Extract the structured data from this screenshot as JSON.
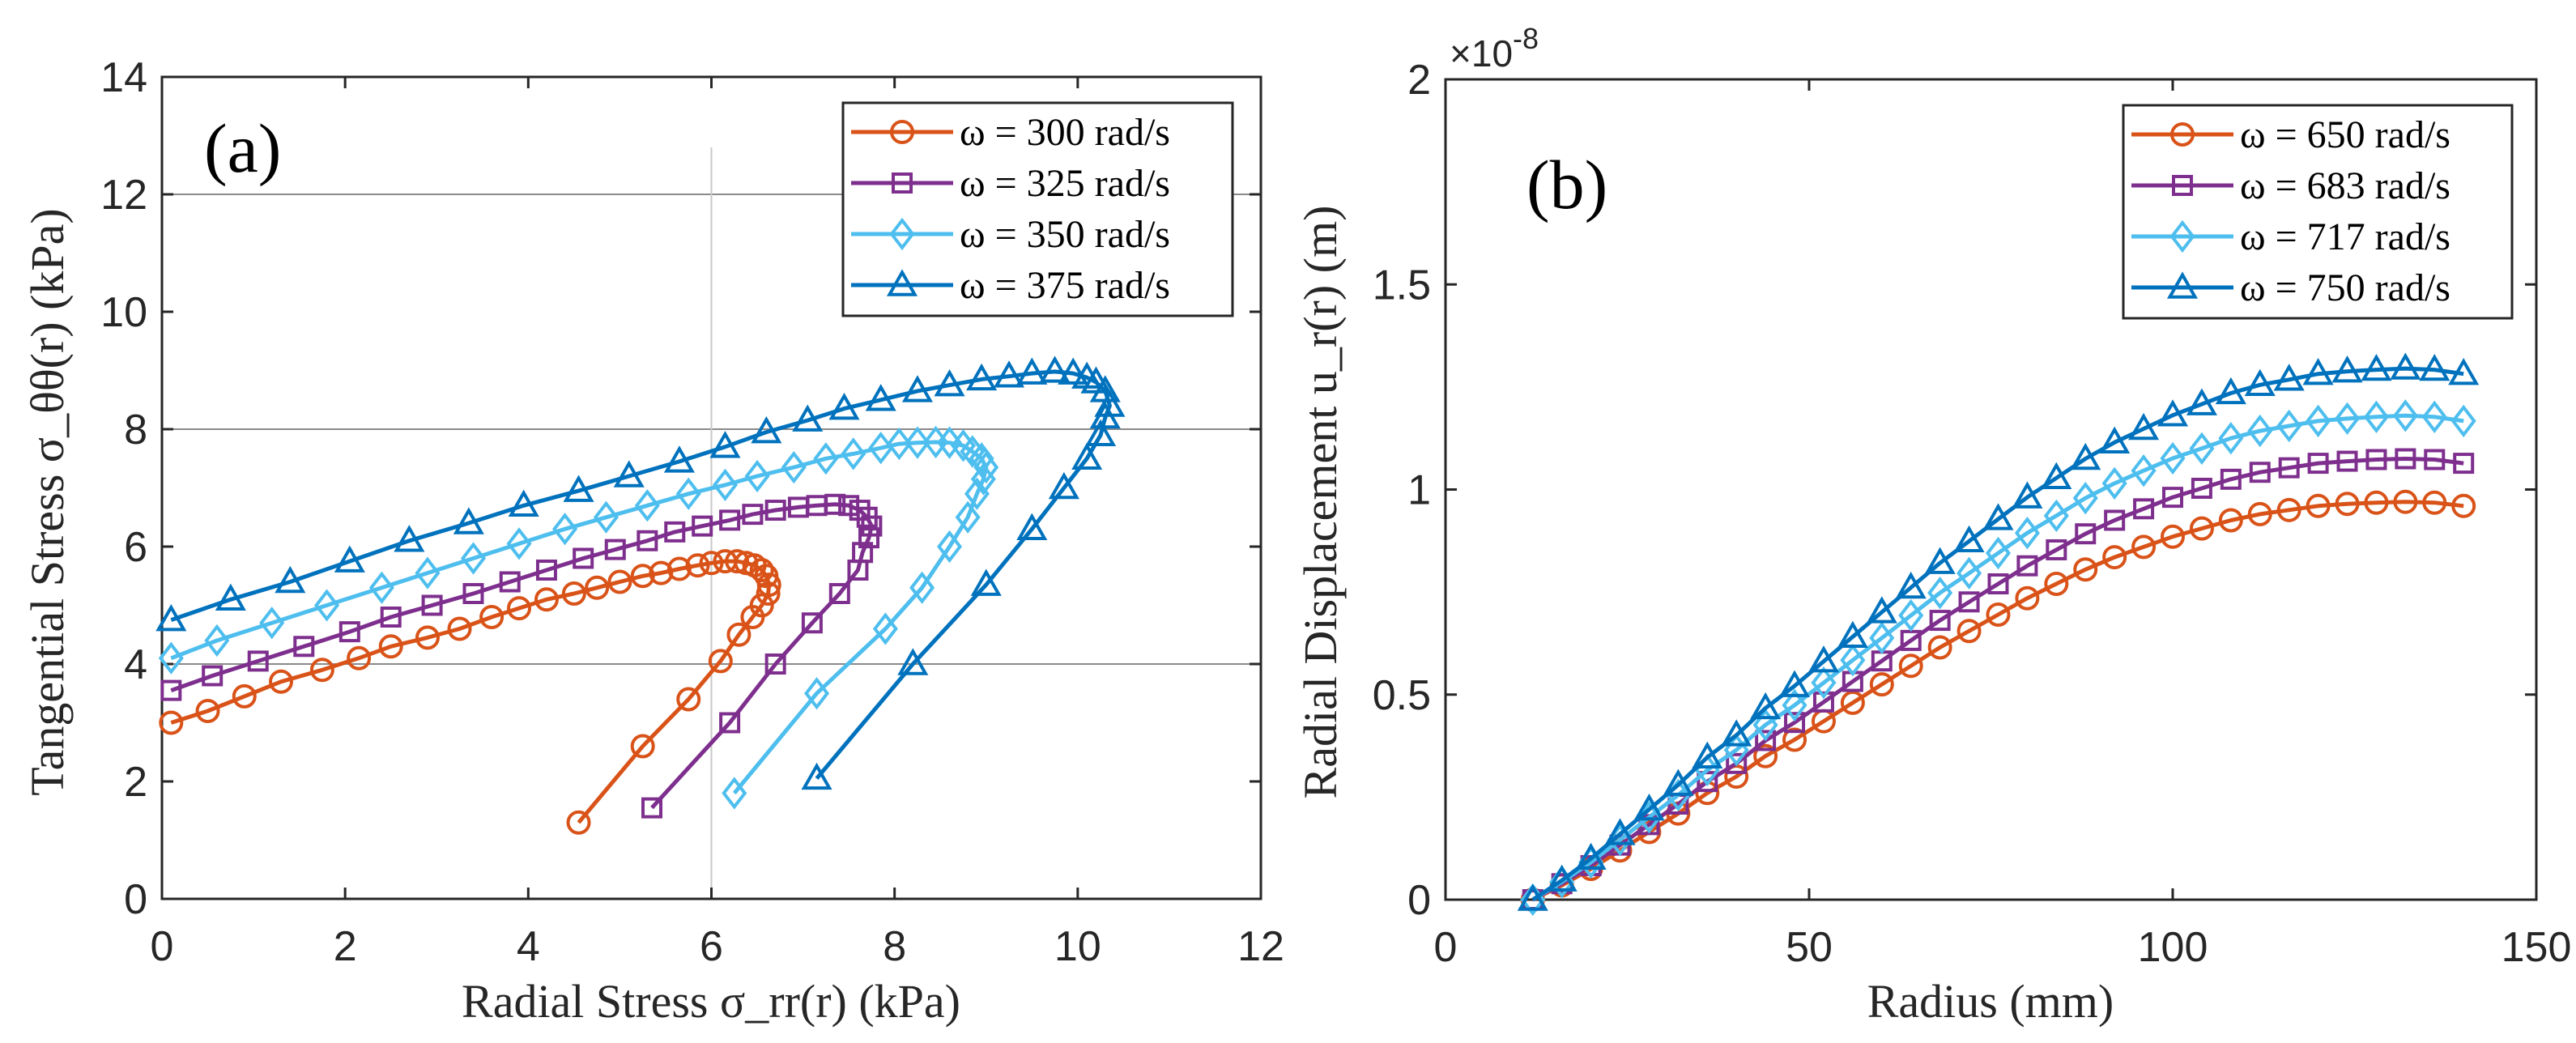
{
  "chart_data": [
    {
      "type": "line",
      "panel_label": "(a)",
      "xlabel": "Radial Stress σ_rr(r) (kPa)",
      "ylabel": "Tangential Stress σ_θθ(r) (kPa)",
      "xlim": [
        0,
        12
      ],
      "ylim": [
        0,
        14
      ],
      "xticks": [
        "0",
        "2",
        "4",
        "6",
        "8",
        "10",
        "12"
      ],
      "yticks": [
        "0",
        "2",
        "4",
        "6",
        "8",
        "10",
        "12",
        "14"
      ],
      "grid": {
        "horizontal": [
          4,
          8,
          12
        ],
        "vertical": [
          6
        ]
      },
      "legend_position": "top-right",
      "series": [
        {
          "name": "ω = 300 rad/s",
          "color": "#D95319",
          "marker": "circle",
          "points": [
            [
              0.1,
              3.0
            ],
            [
              0.5,
              3.2
            ],
            [
              0.9,
              3.45
            ],
            [
              1.3,
              3.7
            ],
            [
              1.75,
              3.9
            ],
            [
              2.15,
              4.1
            ],
            [
              2.5,
              4.3
            ],
            [
              2.9,
              4.45
            ],
            [
              3.25,
              4.6
            ],
            [
              3.6,
              4.8
            ],
            [
              3.9,
              4.95
            ],
            [
              4.2,
              5.1
            ],
            [
              4.5,
              5.2
            ],
            [
              4.75,
              5.3
            ],
            [
              5.0,
              5.4
            ],
            [
              5.25,
              5.5
            ],
            [
              5.45,
              5.55
            ],
            [
              5.65,
              5.62
            ],
            [
              5.85,
              5.68
            ],
            [
              6.0,
              5.72
            ],
            [
              6.15,
              5.75
            ],
            [
              6.28,
              5.75
            ],
            [
              6.38,
              5.72
            ],
            [
              6.47,
              5.68
            ],
            [
              6.55,
              5.6
            ],
            [
              6.6,
              5.5
            ],
            [
              6.63,
              5.35
            ],
            [
              6.62,
              5.2
            ],
            [
              6.55,
              5.0
            ],
            [
              6.45,
              4.8
            ],
            [
              6.3,
              4.5
            ],
            [
              6.1,
              4.05
            ],
            [
              5.75,
              3.4
            ],
            [
              5.25,
              2.6
            ],
            [
              4.55,
              1.3
            ]
          ]
        },
        {
          "name": "ω = 325 rad/s",
          "color": "#7E2F8E",
          "marker": "square",
          "points": [
            [
              0.1,
              3.55
            ],
            [
              0.55,
              3.8
            ],
            [
              1.05,
              4.05
            ],
            [
              1.55,
              4.3
            ],
            [
              2.05,
              4.55
            ],
            [
              2.5,
              4.8
            ],
            [
              2.95,
              5.0
            ],
            [
              3.4,
              5.2
            ],
            [
              3.8,
              5.4
            ],
            [
              4.2,
              5.6
            ],
            [
              4.6,
              5.8
            ],
            [
              4.95,
              5.95
            ],
            [
              5.3,
              6.1
            ],
            [
              5.6,
              6.25
            ],
            [
              5.9,
              6.35
            ],
            [
              6.2,
              6.45
            ],
            [
              6.45,
              6.55
            ],
            [
              6.7,
              6.62
            ],
            [
              6.95,
              6.67
            ],
            [
              7.15,
              6.7
            ],
            [
              7.35,
              6.72
            ],
            [
              7.5,
              6.7
            ],
            [
              7.62,
              6.62
            ],
            [
              7.7,
              6.5
            ],
            [
              7.75,
              6.35
            ],
            [
              7.72,
              6.15
            ],
            [
              7.65,
              5.9
            ],
            [
              7.6,
              5.6
            ],
            [
              7.4,
              5.2
            ],
            [
              7.1,
              4.7
            ],
            [
              6.7,
              4.0
            ],
            [
              6.2,
              3.0
            ],
            [
              5.35,
              1.55
            ]
          ]
        },
        {
          "name": "ω = 350 rad/s",
          "color": "#4DBEEE",
          "marker": "diamond",
          "points": [
            [
              0.1,
              4.1
            ],
            [
              0.6,
              4.4
            ],
            [
              1.2,
              4.7
            ],
            [
              1.8,
              5.0
            ],
            [
              2.4,
              5.3
            ],
            [
              2.9,
              5.55
            ],
            [
              3.4,
              5.8
            ],
            [
              3.9,
              6.05
            ],
            [
              4.4,
              6.3
            ],
            [
              4.85,
              6.5
            ],
            [
              5.3,
              6.7
            ],
            [
              5.75,
              6.9
            ],
            [
              6.15,
              7.05
            ],
            [
              6.5,
              7.2
            ],
            [
              6.9,
              7.35
            ],
            [
              7.25,
              7.5
            ],
            [
              7.55,
              7.58
            ],
            [
              7.85,
              7.68
            ],
            [
              8.05,
              7.75
            ],
            [
              8.25,
              7.77
            ],
            [
              8.45,
              7.78
            ],
            [
              8.6,
              7.77
            ],
            [
              8.75,
              7.72
            ],
            [
              8.85,
              7.62
            ],
            [
              8.95,
              7.5
            ],
            [
              9.0,
              7.35
            ],
            [
              8.97,
              7.15
            ],
            [
              8.9,
              6.9
            ],
            [
              8.8,
              6.5
            ],
            [
              8.6,
              6.0
            ],
            [
              8.3,
              5.3
            ],
            [
              7.9,
              4.6
            ],
            [
              7.15,
              3.5
            ],
            [
              6.25,
              1.8
            ]
          ]
        },
        {
          "name": "ω = 375 rad/s",
          "color": "#0072BD",
          "marker": "triangle",
          "points": [
            [
              0.1,
              4.75
            ],
            [
              0.75,
              5.1
            ],
            [
              1.4,
              5.4
            ],
            [
              2.05,
              5.75
            ],
            [
              2.7,
              6.1
            ],
            [
              3.35,
              6.4
            ],
            [
              3.95,
              6.7
            ],
            [
              4.55,
              6.95
            ],
            [
              5.1,
              7.2
            ],
            [
              5.65,
              7.45
            ],
            [
              6.15,
              7.7
            ],
            [
              6.6,
              7.95
            ],
            [
              7.05,
              8.15
            ],
            [
              7.45,
              8.35
            ],
            [
              7.85,
              8.5
            ],
            [
              8.25,
              8.65
            ],
            [
              8.6,
              8.75
            ],
            [
              8.95,
              8.85
            ],
            [
              9.25,
              8.9
            ],
            [
              9.5,
              8.95
            ],
            [
              9.75,
              8.98
            ],
            [
              9.95,
              8.95
            ],
            [
              10.1,
              8.88
            ],
            [
              10.2,
              8.8
            ],
            [
              10.3,
              8.65
            ],
            [
              10.35,
              8.4
            ],
            [
              10.3,
              8.2
            ],
            [
              10.25,
              7.9
            ],
            [
              10.1,
              7.5
            ],
            [
              9.85,
              7.0
            ],
            [
              9.5,
              6.3
            ],
            [
              9.0,
              5.35
            ],
            [
              8.2,
              4.0
            ],
            [
              7.15,
              2.05
            ]
          ]
        }
      ]
    },
    {
      "type": "line",
      "panel_label": "(b)",
      "xlabel": "Radius (mm)",
      "ylabel": "Radial Displacement u_r(r) (m)",
      "y_multiplier": "×10",
      "y_multiplier_exp": "-8",
      "xlim": [
        0,
        150
      ],
      "ylim": [
        0,
        2
      ],
      "xticks": [
        "0",
        "50",
        "100",
        "150"
      ],
      "yticks": [
        "0",
        "0.5",
        "1",
        "1.5",
        "2"
      ],
      "grid": {
        "horizontal": [],
        "vertical": []
      },
      "legend_position": "top-right",
      "x": [
        12,
        16,
        20,
        24,
        28,
        32,
        36,
        40,
        44,
        48,
        52,
        56,
        60,
        64,
        68,
        72,
        76,
        80,
        84,
        88,
        92,
        96,
        100,
        104,
        108,
        112,
        116,
        120,
        124,
        128,
        132,
        136,
        140
      ],
      "series": [
        {
          "name": "ω = 650 rad/s",
          "color": "#D95319",
          "marker": "circle",
          "values": [
            0,
            0.035,
            0.075,
            0.12,
            0.165,
            0.21,
            0.26,
            0.3,
            0.35,
            0.39,
            0.435,
            0.48,
            0.525,
            0.57,
            0.615,
            0.655,
            0.695,
            0.735,
            0.77,
            0.805,
            0.835,
            0.86,
            0.885,
            0.905,
            0.925,
            0.94,
            0.95,
            0.96,
            0.965,
            0.968,
            0.97,
            0.968,
            0.96
          ]
        },
        {
          "name": "ω = 683 rad/s",
          "color": "#7E2F8E",
          "marker": "square",
          "values": [
            0,
            0.039,
            0.083,
            0.133,
            0.183,
            0.233,
            0.288,
            0.332,
            0.388,
            0.432,
            0.482,
            0.532,
            0.582,
            0.632,
            0.681,
            0.726,
            0.77,
            0.814,
            0.853,
            0.892,
            0.925,
            0.953,
            0.981,
            1.003,
            1.025,
            1.042,
            1.053,
            1.064,
            1.069,
            1.073,
            1.075,
            1.073,
            1.064
          ]
        },
        {
          "name": "ω = 717 rad/s",
          "color": "#4DBEEE",
          "marker": "diamond",
          "values": [
            0,
            0.043,
            0.091,
            0.146,
            0.201,
            0.255,
            0.316,
            0.365,
            0.426,
            0.474,
            0.529,
            0.584,
            0.638,
            0.693,
            0.748,
            0.796,
            0.845,
            0.894,
            0.936,
            0.979,
            1.015,
            1.046,
            1.076,
            1.1,
            1.125,
            1.143,
            1.155,
            1.167,
            1.173,
            1.177,
            1.18,
            1.177,
            1.167
          ]
        },
        {
          "name": "ω = 750 rad/s",
          "color": "#0072BD",
          "marker": "triangle",
          "values": [
            0,
            0.047,
            0.1,
            0.16,
            0.22,
            0.28,
            0.347,
            0.401,
            0.467,
            0.521,
            0.581,
            0.641,
            0.701,
            0.761,
            0.821,
            0.874,
            0.928,
            0.981,
            1.028,
            1.075,
            1.115,
            1.148,
            1.181,
            1.208,
            1.235,
            1.255,
            1.268,
            1.282,
            1.288,
            1.292,
            1.295,
            1.292,
            1.282
          ]
        }
      ]
    }
  ]
}
